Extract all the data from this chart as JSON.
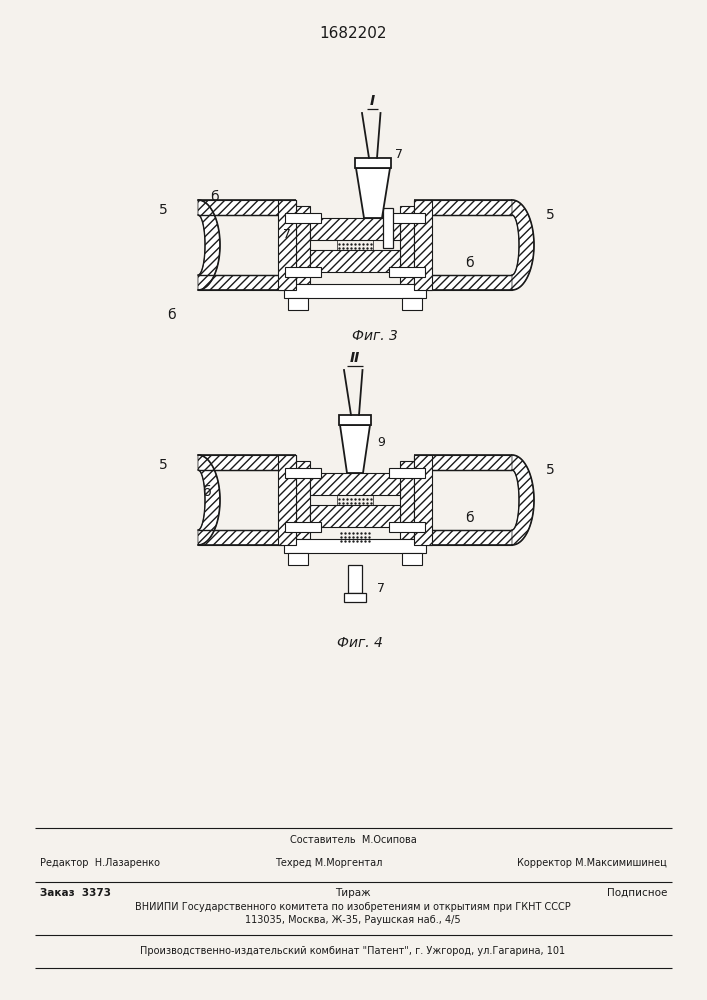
{
  "title": "1682202",
  "fig3_label": "Фиг. 3",
  "fig4_label": "Фиг. 4",
  "label_I": "I",
  "label_II": "II",
  "label_7a": "7",
  "label_7b": "7",
  "label_5a": "5",
  "label_5b": "5",
  "label_6a": "б",
  "label_6b": "б",
  "label_6c": "б",
  "label_9": "9",
  "label_5c": "5",
  "label_5d": "5",
  "label_6d": "б",
  "label_6e": "б",
  "label_7c": "7",
  "footer_editor": "Редактор  Н.Лазаренко",
  "footer_compiler": "Составитель  М.Осипова",
  "footer_techred": "Техред М.Моргентал",
  "footer_corrector": "Корректор М.Максимишинец",
  "footer_order": "Заказ  3373",
  "footer_tirazh": "Тираж",
  "footer_podpisnoe": "Подписное",
  "footer_vniipи": "ВНИИПИ Государственного комитета по изобретениям и открытиям при ГКНТ СССР",
  "footer_address": "113035, Москва, Ж-35, Раушская наб., 4/5",
  "footer_patent": "Производственно-издательский комбинат \"Патент\", г. Ужгород, ул.Гагарина, 101",
  "bg_color": "#f5f2ed",
  "line_color": "#1a1a1a"
}
